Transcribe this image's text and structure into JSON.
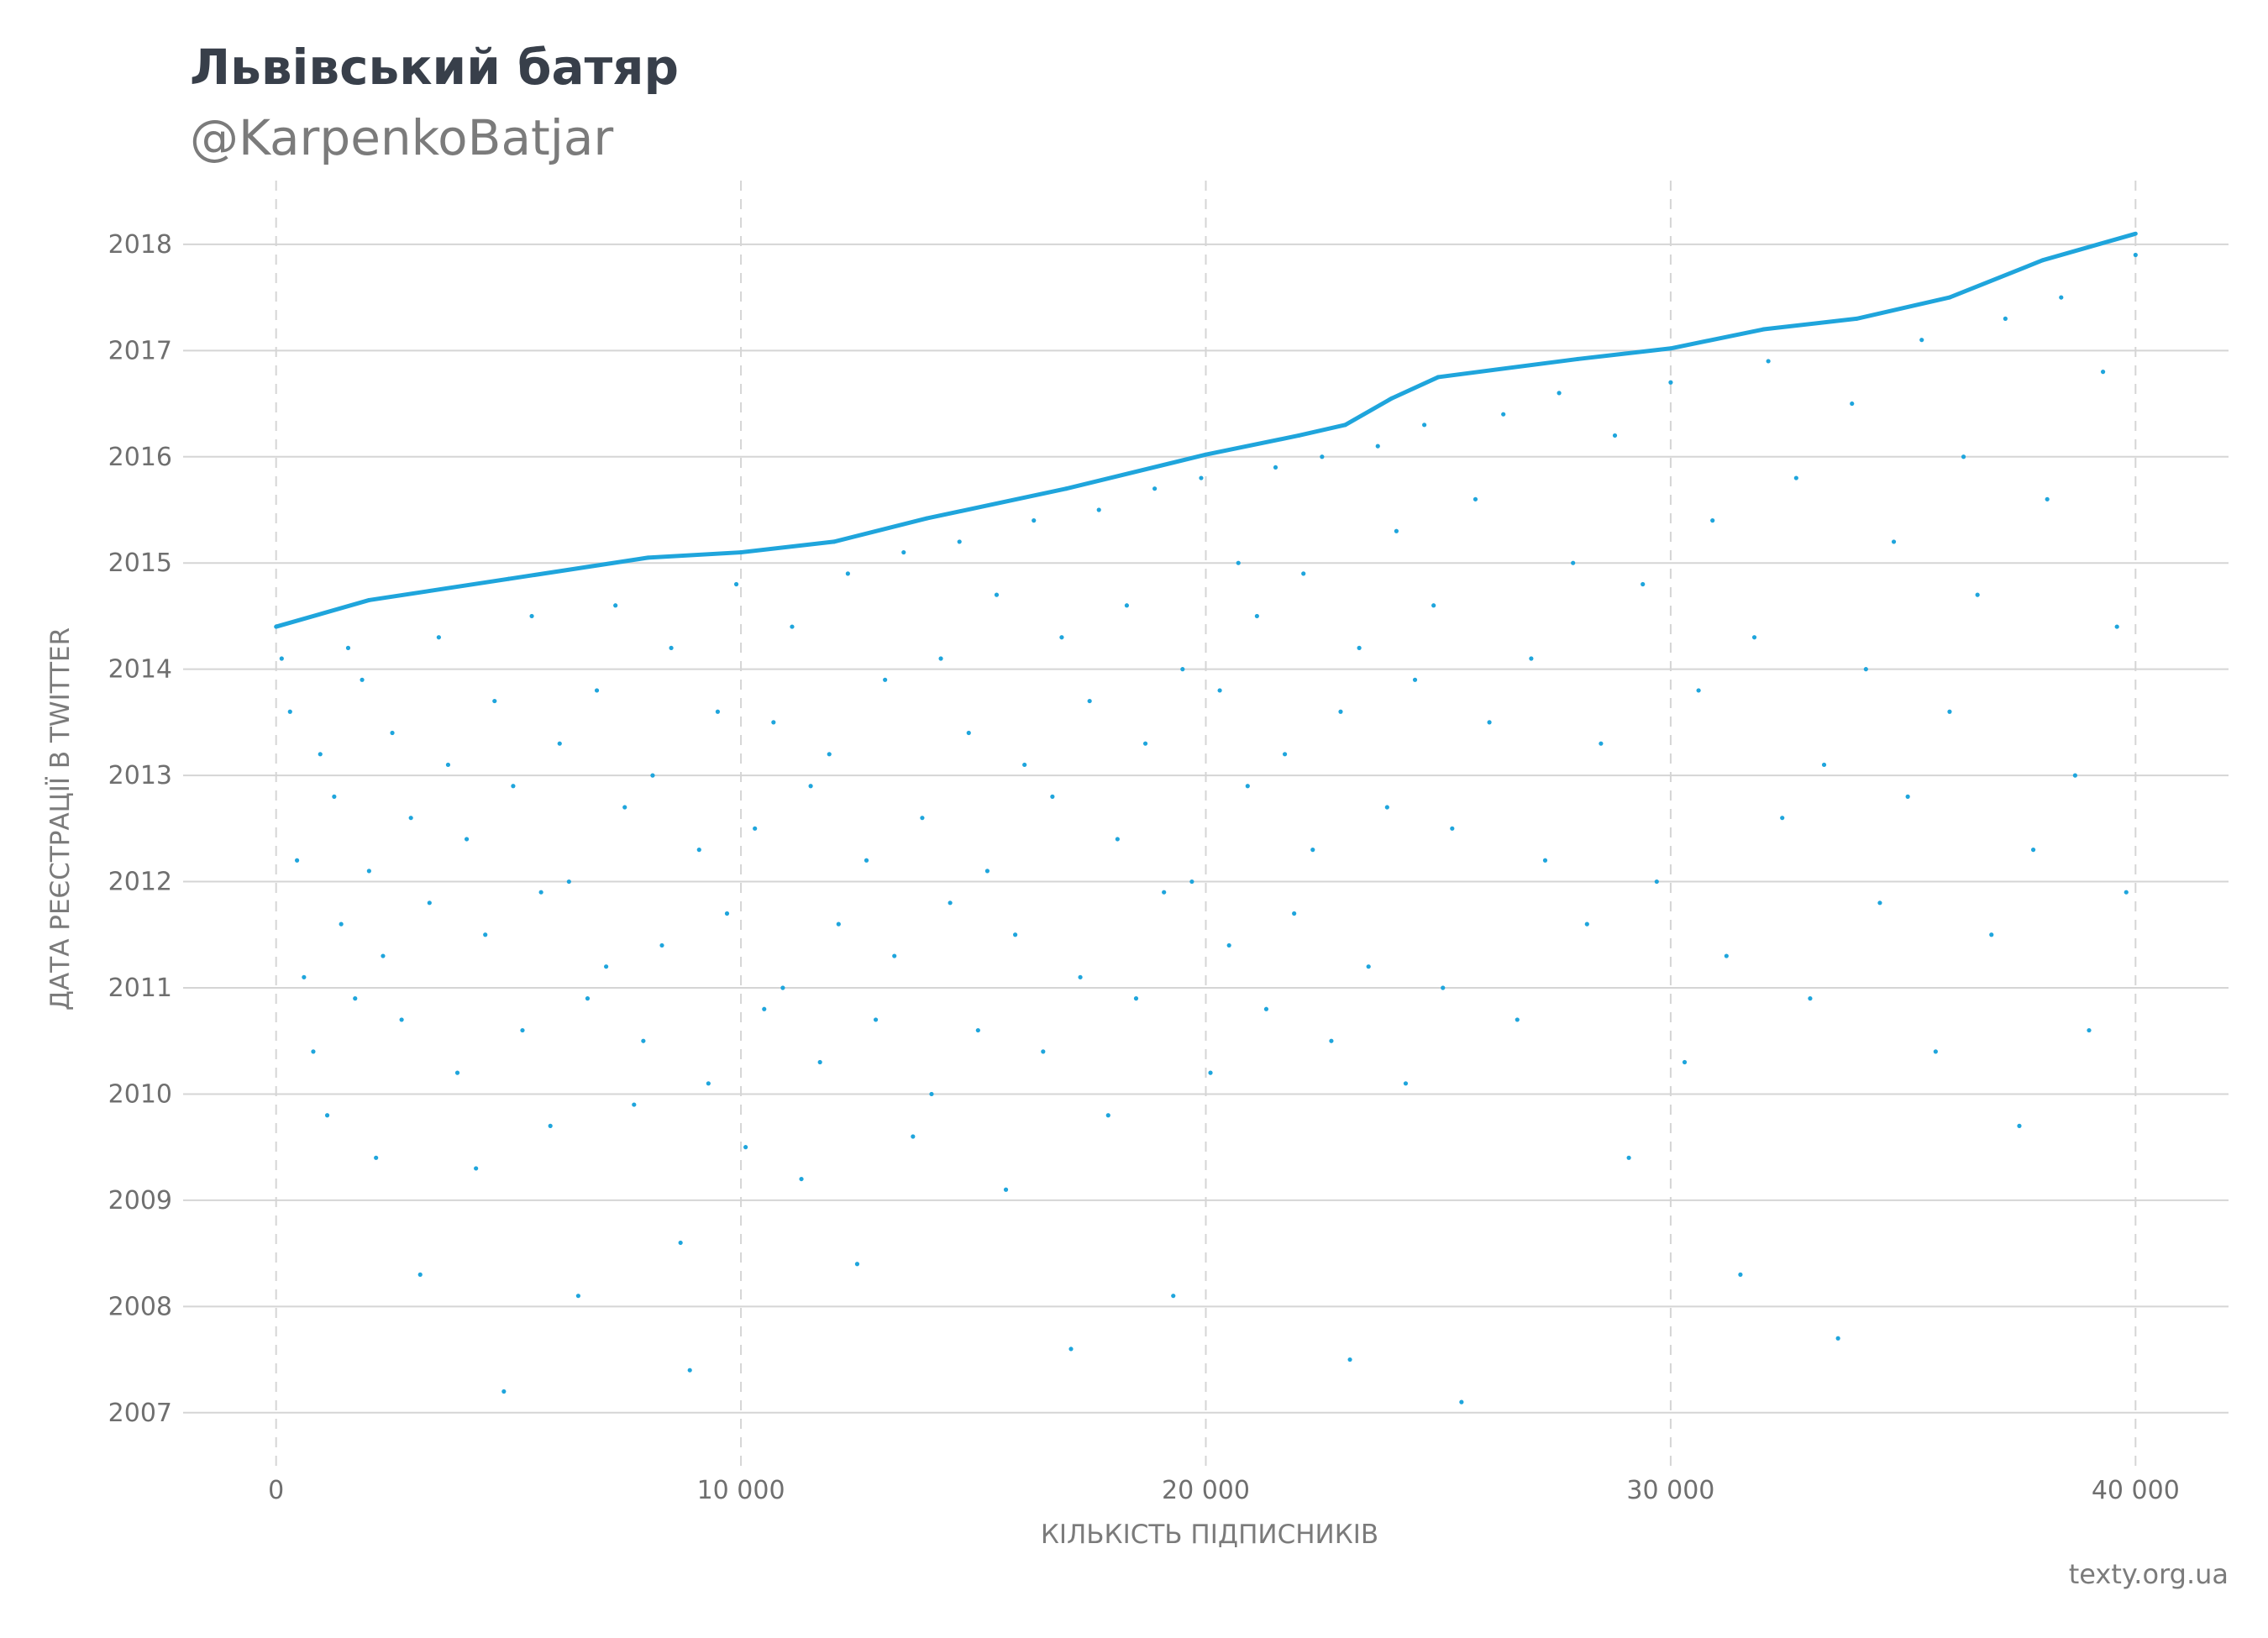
{
  "header": {
    "title": "Львівський батяр",
    "subtitle": "@KarpenkoBatjar"
  },
  "footer": {
    "source": "texty.org.ua"
  },
  "colors": {
    "points": "#1fa5dc",
    "grid": "#d5d5d5",
    "text": "#6f6f6f",
    "title": "#383f4a"
  },
  "chart_data": {
    "type": "scatter",
    "title": "Львівський батяр",
    "subtitle": "@KarpenkoBatjar",
    "xlabel": "КІЛЬКІСТЬ ПІДПИСНИКІВ",
    "ylabel": "ДАТА РЕЄСТРАЦІЇ В TWITTER",
    "xlim": [
      -2000,
      42000
    ],
    "ylim": [
      2006.5,
      2018.6
    ],
    "x_ticks": [
      0,
      10000,
      20000,
      30000,
      40000
    ],
    "x_tick_labels": [
      "0",
      "10 000",
      "20 000",
      "30 000",
      "40 000"
    ],
    "y_ticks": [
      2007,
      2008,
      2009,
      2010,
      2011,
      2012,
      2013,
      2014,
      2015,
      2016,
      2017,
      2018
    ],
    "y_tick_labels": [
      "2007",
      "2008",
      "2009",
      "2010",
      "2011",
      "2012",
      "2013",
      "2014",
      "2015",
      "2016",
      "2017",
      "2018"
    ],
    "grid": {
      "horizontal": "solid",
      "vertical": "dashed"
    },
    "legend": "none",
    "series": [
      {
        "values_note_points": "follower index (x) vs twitter registration year (y); upper envelope values",
        "envelope": [
          [
            0,
            2014.4
          ],
          [
            2000,
            2014.65
          ],
          [
            5000,
            2014.85
          ],
          [
            8000,
            2015.05
          ],
          [
            10000,
            2015.1
          ],
          [
            12000,
            2015.2
          ],
          [
            14000,
            2015.42
          ],
          [
            17000,
            2015.7
          ],
          [
            20000,
            2016.02
          ],
          [
            22000,
            2016.2
          ],
          [
            23000,
            2016.3
          ],
          [
            24000,
            2016.55
          ],
          [
            25000,
            2016.75
          ],
          [
            28000,
            2016.92
          ],
          [
            30000,
            2017.02
          ],
          [
            32000,
            2017.2
          ],
          [
            34000,
            2017.3
          ],
          [
            36000,
            2017.5
          ],
          [
            38000,
            2017.85
          ],
          [
            40000,
            2018.1
          ]
        ],
        "points": [
          [
            120,
            2014.1
          ],
          [
            300,
            2013.6
          ],
          [
            450,
            2012.2
          ],
          [
            600,
            2011.1
          ],
          [
            800,
            2010.4
          ],
          [
            950,
            2013.2
          ],
          [
            1100,
            2009.8
          ],
          [
            1250,
            2012.8
          ],
          [
            1400,
            2011.6
          ],
          [
            1550,
            2014.2
          ],
          [
            1700,
            2010.9
          ],
          [
            1850,
            2013.9
          ],
          [
            2000,
            2012.1
          ],
          [
            2150,
            2009.4
          ],
          [
            2300,
            2011.3
          ],
          [
            2500,
            2013.4
          ],
          [
            2700,
            2010.7
          ],
          [
            2900,
            2012.6
          ],
          [
            3100,
            2008.3
          ],
          [
            3300,
            2011.8
          ],
          [
            3500,
            2014.3
          ],
          [
            3700,
            2013.1
          ],
          [
            3900,
            2010.2
          ],
          [
            4100,
            2012.4
          ],
          [
            4300,
            2009.3
          ],
          [
            4500,
            2011.5
          ],
          [
            4700,
            2013.7
          ],
          [
            4900,
            2007.2
          ],
          [
            5100,
            2012.9
          ],
          [
            5300,
            2010.6
          ],
          [
            5500,
            2014.5
          ],
          [
            5700,
            2011.9
          ],
          [
            5900,
            2009.7
          ],
          [
            6100,
            2013.3
          ],
          [
            6300,
            2012.0
          ],
          [
            6500,
            2008.1
          ],
          [
            6700,
            2010.9
          ],
          [
            6900,
            2013.8
          ],
          [
            7100,
            2011.2
          ],
          [
            7300,
            2014.6
          ],
          [
            7500,
            2012.7
          ],
          [
            7700,
            2009.9
          ],
          [
            7900,
            2010.5
          ],
          [
            8100,
            2013.0
          ],
          [
            8300,
            2011.4
          ],
          [
            8500,
            2014.2
          ],
          [
            8700,
            2008.6
          ],
          [
            8900,
            2007.4
          ],
          [
            9100,
            2012.3
          ],
          [
            9300,
            2010.1
          ],
          [
            9500,
            2013.6
          ],
          [
            9700,
            2011.7
          ],
          [
            9900,
            2014.8
          ],
          [
            10100,
            2009.5
          ],
          [
            10300,
            2012.5
          ],
          [
            10500,
            2010.8
          ],
          [
            10700,
            2013.5
          ],
          [
            10900,
            2011.0
          ],
          [
            11100,
            2014.4
          ],
          [
            11300,
            2009.2
          ],
          [
            11500,
            2012.9
          ],
          [
            11700,
            2010.3
          ],
          [
            11900,
            2013.2
          ],
          [
            12100,
            2011.6
          ],
          [
            12300,
            2014.9
          ],
          [
            12500,
            2008.4
          ],
          [
            12700,
            2012.2
          ],
          [
            12900,
            2010.7
          ],
          [
            13100,
            2013.9
          ],
          [
            13300,
            2011.3
          ],
          [
            13500,
            2015.1
          ],
          [
            13700,
            2009.6
          ],
          [
            13900,
            2012.6
          ],
          [
            14100,
            2010.0
          ],
          [
            14300,
            2014.1
          ],
          [
            14500,
            2011.8
          ],
          [
            14700,
            2015.2
          ],
          [
            14900,
            2013.4
          ],
          [
            15100,
            2010.6
          ],
          [
            15300,
            2012.1
          ],
          [
            15500,
            2014.7
          ],
          [
            15700,
            2009.1
          ],
          [
            15900,
            2011.5
          ],
          [
            16100,
            2013.1
          ],
          [
            16300,
            2015.4
          ],
          [
            16500,
            2010.4
          ],
          [
            16700,
            2012.8
          ],
          [
            16900,
            2014.3
          ],
          [
            17100,
            2007.6
          ],
          [
            17300,
            2011.1
          ],
          [
            17500,
            2013.7
          ],
          [
            17700,
            2015.5
          ],
          [
            17900,
            2009.8
          ],
          [
            18100,
            2012.4
          ],
          [
            18300,
            2014.6
          ],
          [
            18500,
            2010.9
          ],
          [
            18700,
            2013.3
          ],
          [
            18900,
            2015.7
          ],
          [
            19100,
            2011.9
          ],
          [
            19300,
            2008.1
          ],
          [
            19500,
            2014.0
          ],
          [
            19700,
            2012.0
          ],
          [
            19900,
            2015.8
          ],
          [
            20100,
            2010.2
          ],
          [
            20300,
            2013.8
          ],
          [
            20500,
            2011.4
          ],
          [
            20700,
            2015.0
          ],
          [
            20900,
            2012.9
          ],
          [
            21100,
            2014.5
          ],
          [
            21300,
            2010.8
          ],
          [
            21500,
            2015.9
          ],
          [
            21700,
            2013.2
          ],
          [
            21900,
            2011.7
          ],
          [
            22100,
            2014.9
          ],
          [
            22300,
            2012.3
          ],
          [
            22500,
            2016.0
          ],
          [
            22700,
            2010.5
          ],
          [
            22900,
            2013.6
          ],
          [
            23100,
            2007.5
          ],
          [
            23300,
            2014.2
          ],
          [
            23500,
            2011.2
          ],
          [
            23700,
            2016.1
          ],
          [
            23900,
            2012.7
          ],
          [
            24100,
            2015.3
          ],
          [
            24300,
            2010.1
          ],
          [
            24500,
            2013.9
          ],
          [
            24700,
            2016.3
          ],
          [
            24900,
            2014.6
          ],
          [
            25100,
            2011.0
          ],
          [
            25300,
            2012.5
          ],
          [
            25500,
            2007.1
          ],
          [
            25800,
            2015.6
          ],
          [
            26100,
            2013.5
          ],
          [
            26400,
            2016.4
          ],
          [
            26700,
            2010.7
          ],
          [
            27000,
            2014.1
          ],
          [
            27300,
            2012.2
          ],
          [
            27600,
            2016.6
          ],
          [
            27900,
            2015.0
          ],
          [
            28200,
            2011.6
          ],
          [
            28500,
            2013.3
          ],
          [
            28800,
            2016.2
          ],
          [
            29100,
            2009.4
          ],
          [
            29400,
            2014.8
          ],
          [
            29700,
            2012.0
          ],
          [
            30000,
            2016.7
          ],
          [
            30300,
            2010.3
          ],
          [
            30600,
            2013.8
          ],
          [
            30900,
            2015.4
          ],
          [
            31200,
            2011.3
          ],
          [
            31500,
            2008.3
          ],
          [
            31800,
            2014.3
          ],
          [
            32100,
            2016.9
          ],
          [
            32400,
            2012.6
          ],
          [
            32700,
            2015.8
          ],
          [
            33000,
            2010.9
          ],
          [
            33300,
            2013.1
          ],
          [
            33600,
            2007.7
          ],
          [
            33900,
            2016.5
          ],
          [
            34200,
            2014.0
          ],
          [
            34500,
            2011.8
          ],
          [
            34800,
            2015.2
          ],
          [
            35100,
            2012.8
          ],
          [
            35400,
            2017.1
          ],
          [
            35700,
            2010.4
          ],
          [
            36000,
            2013.6
          ],
          [
            36300,
            2016.0
          ],
          [
            36600,
            2014.7
          ],
          [
            36900,
            2011.5
          ],
          [
            37200,
            2017.3
          ],
          [
            37500,
            2009.7
          ],
          [
            37800,
            2012.3
          ],
          [
            38100,
            2015.6
          ],
          [
            38400,
            2017.5
          ],
          [
            38700,
            2013.0
          ],
          [
            39000,
            2010.6
          ],
          [
            39300,
            2016.8
          ],
          [
            39600,
            2014.4
          ],
          [
            39800,
            2011.9
          ],
          [
            40000,
            2017.9
          ]
        ]
      }
    ]
  }
}
